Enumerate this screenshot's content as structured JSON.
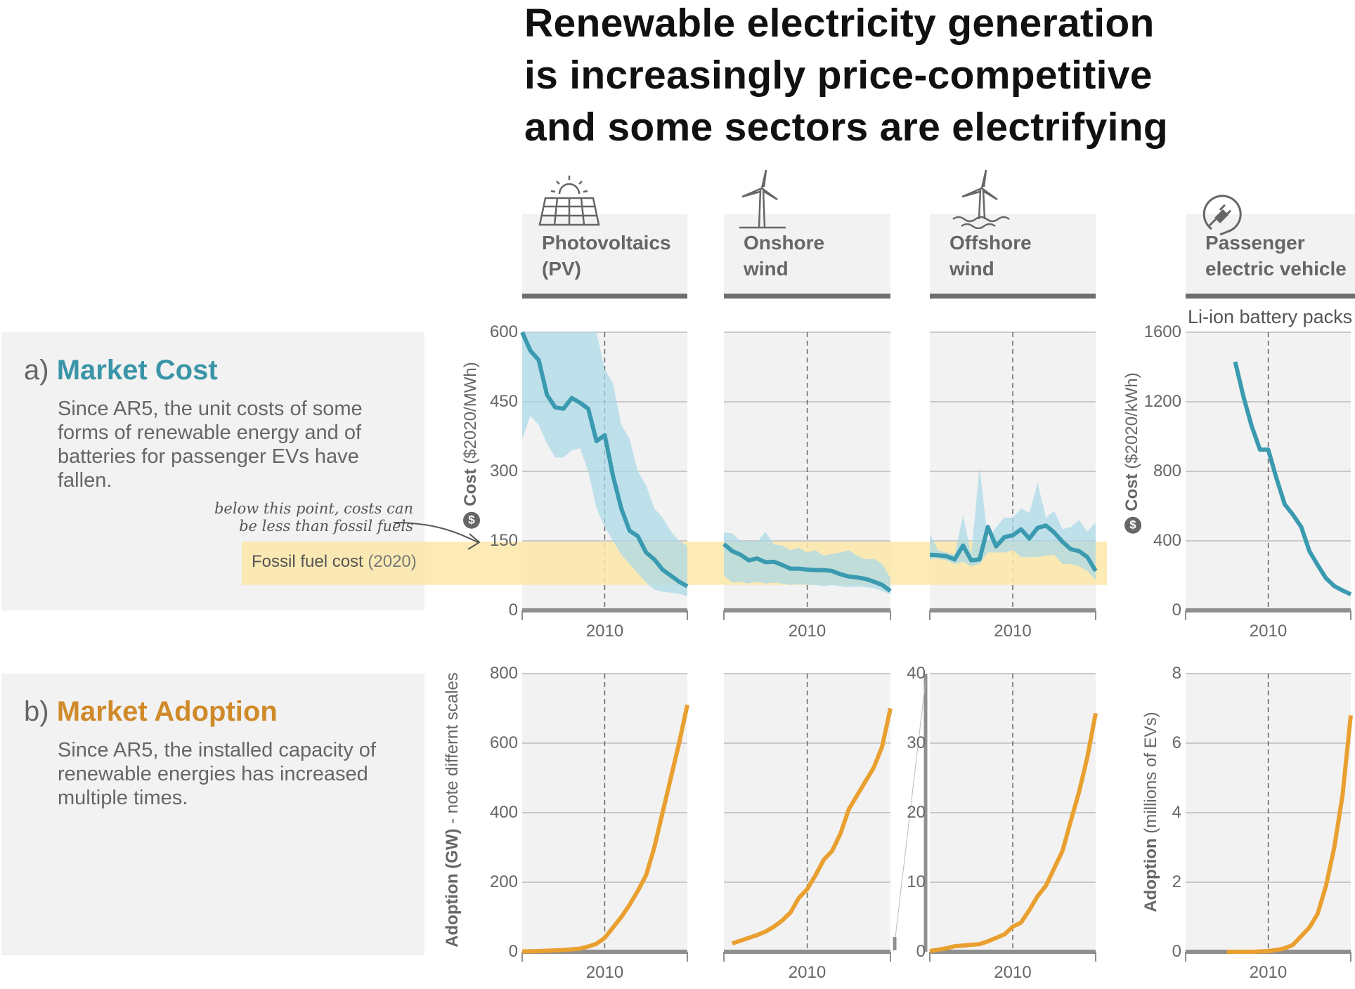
{
  "title": "Renewable electricity generation\nis increasingly price-competitive\nand some sectors are electrifying",
  "headers": [
    {
      "label": "Photovoltaics\n(PV)",
      "icon": "solar-panel-icon"
    },
    {
      "label": "Onshore\nwind",
      "icon": "wind-turbine-icon"
    },
    {
      "label": "Offshore\nwind",
      "icon": "offshore-wind-turbine-icon"
    },
    {
      "label": "Passenger\nelectric vehicle",
      "icon": "ev-plug-icon"
    }
  ],
  "sections": {
    "cost": {
      "prefix": "a)",
      "name": "Market Cost",
      "color": "#3a95a8",
      "body": "Since AR5, the unit costs of some forms of renewable energy and of batteries for passenger EVs have fallen."
    },
    "adoption": {
      "prefix": "b)",
      "name": "Market Adoption",
      "color": "#d08a2a",
      "body": "Since AR5, the installed capacity of renewable energies has increased multiple times."
    }
  },
  "annotation": "below this point, costs can\nbe less than fossil fuels",
  "fossil_label": {
    "main": "Fossil fuel cost",
    "year": "(2020)"
  },
  "ev_cost_subtitle": "Li-ion battery packs",
  "ylabels": {
    "cost_mwh": {
      "bold": "Cost",
      "rest": "($2020/MWh)",
      "icon": "dollar-icon"
    },
    "adoption_gw": {
      "bold": "Adoption (GW)",
      "rest": "- note differnt scales"
    },
    "cost_kwh": {
      "bold": "Cost",
      "rest": "($2020/kWh)",
      "icon": "dollar-icon"
    },
    "adoption_ev": {
      "bold": "Adoption",
      "rest": "(millions of EVs)"
    }
  },
  "colors": {
    "cost_line": "#3a9ab0",
    "cost_band": "#a9d8e8",
    "adoption_line": "#e9a030",
    "fossil_band": "#fde7a8",
    "panel_bg": "#f2f2f2",
    "grid": "#c9c9c9",
    "axis": "#8f8f8f"
  },
  "chart_data": [
    {
      "id": "pv-cost",
      "type": "line",
      "technology": "Photovoltaics (PV)",
      "metric": "cost",
      "xlim": [
        2000,
        2020
      ],
      "xticks": [
        2010
      ],
      "ylim": [
        0,
        600
      ],
      "yticks": [
        0,
        150,
        300,
        450,
        600
      ],
      "show_yticks": true,
      "reference_year": 2010,
      "fossil_fuel_cost_range": [
        55,
        148
      ],
      "x": [
        2000,
        2001,
        2002,
        2003,
        2004,
        2005,
        2006,
        2007,
        2008,
        2009,
        2010,
        2011,
        2012,
        2013,
        2014,
        2015,
        2016,
        2017,
        2018,
        2019,
        2020
      ],
      "values": [
        600,
        560,
        540,
        465,
        438,
        435,
        458,
        448,
        435,
        365,
        378,
        290,
        220,
        172,
        160,
        125,
        110,
        88,
        75,
        62,
        52
      ],
      "band_low": [
        370,
        420,
        400,
        360,
        330,
        330,
        345,
        350,
        300,
        220,
        180,
        150,
        120,
        100,
        80,
        60,
        45,
        40,
        38,
        36,
        30
      ],
      "band_high": [
        600,
        600,
        600,
        600,
        600,
        600,
        600,
        600,
        600,
        600,
        520,
        490,
        400,
        370,
        300,
        270,
        220,
        200,
        170,
        150,
        140
      ]
    },
    {
      "id": "onshore-cost",
      "type": "line",
      "technology": "Onshore wind",
      "metric": "cost",
      "xlim": [
        2000,
        2020
      ],
      "xticks": [
        2010
      ],
      "ylim": [
        0,
        600
      ],
      "yticks": [
        0,
        150,
        300,
        450,
        600
      ],
      "show_yticks": false,
      "reference_year": 2010,
      "x": [
        2000,
        2001,
        2002,
        2003,
        2004,
        2005,
        2006,
        2007,
        2008,
        2009,
        2010,
        2011,
        2012,
        2013,
        2014,
        2015,
        2016,
        2017,
        2018,
        2019,
        2020
      ],
      "values": [
        143,
        128,
        120,
        108,
        112,
        104,
        105,
        98,
        90,
        90,
        88,
        87,
        87,
        85,
        78,
        73,
        71,
        68,
        62,
        55,
        42
      ],
      "band_low": [
        75,
        60,
        62,
        58,
        62,
        58,
        60,
        58,
        55,
        57,
        55,
        55,
        52,
        55,
        52,
        50,
        52,
        50,
        48,
        42,
        35
      ],
      "band_high": [
        168,
        166,
        150,
        150,
        148,
        170,
        142,
        140,
        130,
        135,
        125,
        130,
        118,
        122,
        125,
        130,
        118,
        110,
        112,
        100,
        70
      ]
    },
    {
      "id": "offshore-cost",
      "type": "line",
      "technology": "Offshore wind",
      "metric": "cost",
      "xlim": [
        2000,
        2020
      ],
      "xticks": [
        2010
      ],
      "ylim": [
        0,
        600
      ],
      "yticks": [
        0,
        150,
        300,
        450,
        600
      ],
      "show_yticks": false,
      "reference_year": 2010,
      "x": [
        2000,
        2001,
        2002,
        2003,
        2004,
        2005,
        2006,
        2007,
        2008,
        2009,
        2010,
        2011,
        2012,
        2013,
        2014,
        2015,
        2016,
        2017,
        2018,
        2019,
        2020
      ],
      "values": [
        120,
        119,
        117,
        110,
        140,
        108,
        110,
        180,
        138,
        158,
        162,
        175,
        155,
        178,
        183,
        168,
        148,
        132,
        128,
        115,
        85
      ],
      "band_low": [
        110,
        112,
        108,
        100,
        105,
        95,
        100,
        125,
        125,
        125,
        130,
        115,
        115,
        115,
        118,
        120,
        100,
        100,
        95,
        85,
        65
      ],
      "band_high": [
        165,
        130,
        125,
        120,
        205,
        120,
        310,
        150,
        180,
        200,
        200,
        220,
        210,
        275,
        200,
        215,
        175,
        180,
        195,
        170,
        190
      ]
    },
    {
      "id": "ev-cost",
      "type": "line",
      "technology": "Passenger electric vehicle",
      "metric": "cost",
      "xlim": [
        2000,
        2020
      ],
      "xticks": [
        2010
      ],
      "ylim": [
        0,
        1600
      ],
      "yticks": [
        0,
        400,
        800,
        1200,
        1600
      ],
      "show_yticks": true,
      "reference_year": 2010,
      "x": [
        2006,
        2007,
        2008,
        2009,
        2010,
        2011,
        2012,
        2013,
        2014,
        2015,
        2016,
        2017,
        2018,
        2019,
        2020
      ],
      "values": [
        1430,
        1230,
        1060,
        925,
        925,
        760,
        610,
        550,
        480,
        340,
        260,
        185,
        140,
        115,
        92
      ]
    },
    {
      "id": "pv-adoption",
      "type": "line",
      "technology": "Photovoltaics (PV)",
      "metric": "adoption",
      "xlim": [
        2000,
        2020
      ],
      "xticks": [
        2010
      ],
      "ylim": [
        0,
        800
      ],
      "yticks": [
        0,
        200,
        400,
        600,
        800
      ],
      "show_yticks": true,
      "reference_year": 2010,
      "x": [
        2000,
        2001,
        2002,
        2003,
        2004,
        2005,
        2006,
        2007,
        2008,
        2009,
        2010,
        2011,
        2012,
        2013,
        2014,
        2015,
        2016,
        2017,
        2018,
        2019,
        2020
      ],
      "values": [
        1,
        1.5,
        2,
        3,
        4,
        5,
        7,
        9,
        15,
        23,
        40,
        70,
        100,
        135,
        175,
        220,
        300,
        400,
        500,
        600,
        710
      ]
    },
    {
      "id": "onshore-adoption",
      "type": "line",
      "technology": "Onshore wind",
      "metric": "adoption",
      "xlim": [
        2000,
        2020
      ],
      "xticks": [
        2010
      ],
      "ylim": [
        0,
        800
      ],
      "yticks": [
        0,
        200,
        400,
        600,
        800
      ],
      "show_yticks": false,
      "reference_year": 2010,
      "x": [
        2001,
        2002,
        2003,
        2004,
        2005,
        2006,
        2007,
        2008,
        2009,
        2010,
        2011,
        2012,
        2013,
        2014,
        2015,
        2016,
        2017,
        2018,
        2019,
        2020
      ],
      "values": [
        24,
        32,
        40,
        48,
        58,
        72,
        90,
        113,
        155,
        180,
        220,
        265,
        290,
        340,
        410,
        450,
        490,
        530,
        590,
        700
      ]
    },
    {
      "id": "offshore-adoption",
      "type": "line",
      "technology": "Offshore wind",
      "metric": "adoption",
      "xlim": [
        2000,
        2020
      ],
      "xticks": [
        2010
      ],
      "ylim": [
        0,
        40
      ],
      "yticks": [
        0,
        10,
        20,
        30,
        40
      ],
      "show_yticks": true,
      "reference_year": 2010,
      "x": [
        2000,
        2001,
        2002,
        2003,
        2004,
        2005,
        2006,
        2007,
        2008,
        2009,
        2010,
        2011,
        2012,
        2013,
        2014,
        2015,
        2016,
        2017,
        2018,
        2019,
        2020
      ],
      "values": [
        0.1,
        0.3,
        0.5,
        0.8,
        0.9,
        1.0,
        1.1,
        1.5,
        2.0,
        2.5,
        3.6,
        4.2,
        6.0,
        8.0,
        9.5,
        12,
        14.5,
        18.8,
        23,
        28,
        34.3
      ]
    },
    {
      "id": "ev-adoption",
      "type": "line",
      "technology": "Passenger electric vehicle",
      "metric": "adoption",
      "xlim": [
        2000,
        2020
      ],
      "xticks": [
        2010
      ],
      "ylim": [
        0,
        8
      ],
      "yticks": [
        0,
        2,
        4,
        6,
        8
      ],
      "show_yticks": true,
      "reference_year": 2010,
      "x": [
        2005,
        2006,
        2007,
        2008,
        2009,
        2010,
        2011,
        2012,
        2013,
        2014,
        2015,
        2016,
        2017,
        2018,
        2019,
        2020
      ],
      "values": [
        0,
        0,
        0,
        0,
        0.01,
        0.02,
        0.05,
        0.1,
        0.2,
        0.45,
        0.7,
        1.1,
        1.9,
        3.0,
        4.5,
        6.8
      ]
    }
  ]
}
